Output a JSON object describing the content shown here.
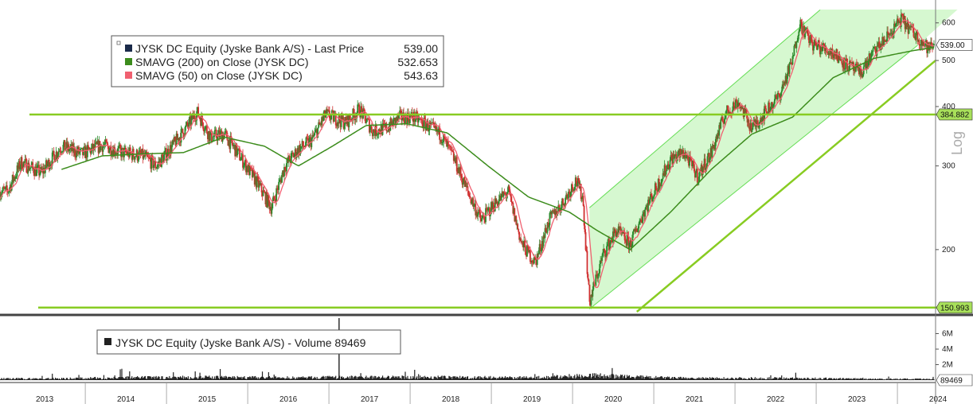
{
  "chart_data": {
    "type": "line",
    "scale": "log",
    "legend": {
      "placement": "top-left",
      "items": [
        {
          "label": "JYSK DC Equity (Jyske Bank A/S) - Last Price",
          "value": "539.00",
          "color": "#1a2a4a"
        },
        {
          "label": "SMAVG (200)  on Close (JYSK DC)",
          "value": "532.653",
          "color": "#3c8c1c"
        },
        {
          "label": "SMAVG (50)  on Close (JYSK DC)",
          "value": "543.63",
          "color": "#f06070"
        }
      ]
    },
    "volume_legend": "JYSK DC Equity (Jyske Bank A/S) - Volume 89469",
    "price_ticks": [
      200,
      300,
      400,
      500,
      600
    ],
    "volume_ticks": [
      "2M",
      "4M",
      "6M"
    ],
    "axis_label": "Log",
    "ylim": [
      148,
      640
    ],
    "years": [
      "2013",
      "2014",
      "2015",
      "2016",
      "2017",
      "2018",
      "2019",
      "2020",
      "2021",
      "2022",
      "2023",
      "2024"
    ],
    "tags": {
      "last_price": "539.00",
      "upper_level": "384.882",
      "lower_level": "150.993",
      "volume_last": "89469"
    },
    "horizontal_levels": [
      384.882,
      150.993
    ],
    "colors": {
      "up": "#2c8a2c",
      "down": "#d03030",
      "sma50": "#f06070",
      "sma200": "#3c8c1c",
      "trend": "#88cc22",
      "channel_fill": "#c8f5c0",
      "channel_edge": "#66dd55"
    },
    "price_keypoints": [
      [
        "2013-01",
        265
      ],
      [
        "2013-03",
        305
      ],
      [
        "2013-06",
        290
      ],
      [
        "2013-09",
        330
      ],
      [
        "2013-12",
        318
      ],
      [
        "2014-03",
        332
      ],
      [
        "2014-06",
        320
      ],
      [
        "2014-09",
        315
      ],
      [
        "2014-11",
        300
      ],
      [
        "2015-01",
        325
      ],
      [
        "2015-04",
        370
      ],
      [
        "2015-05",
        390
      ],
      [
        "2015-07",
        345
      ],
      [
        "2015-09",
        350
      ],
      [
        "2015-11",
        320
      ],
      [
        "2016-02",
        275
      ],
      [
        "2016-04",
        245
      ],
      [
        "2016-06",
        300
      ],
      [
        "2016-08",
        325
      ],
      [
        "2016-10",
        340
      ],
      [
        "2016-12",
        385
      ],
      [
        "2017-03",
        370
      ],
      [
        "2017-05",
        395
      ],
      [
        "2017-07",
        355
      ],
      [
        "2017-09",
        360
      ],
      [
        "2017-11",
        380
      ],
      [
        "2018-01",
        380
      ],
      [
        "2018-03",
        365
      ],
      [
        "2018-05",
        350
      ],
      [
        "2018-07",
        310
      ],
      [
        "2018-09",
        265
      ],
      [
        "2018-11",
        230
      ],
      [
        "2019-01",
        250
      ],
      [
        "2019-03",
        265
      ],
      [
        "2019-05",
        205
      ],
      [
        "2019-07",
        188
      ],
      [
        "2019-09",
        230
      ],
      [
        "2019-11",
        250
      ],
      [
        "2020-01",
        280
      ],
      [
        "2020-02",
        258
      ],
      [
        "2020-03",
        155
      ],
      [
        "2020-05",
        195
      ],
      [
        "2020-07",
        220
      ],
      [
        "2020-09",
        205
      ],
      [
        "2020-11",
        240
      ],
      [
        "2021-01",
        272
      ],
      [
        "2021-03",
        310
      ],
      [
        "2021-05",
        320
      ],
      [
        "2021-07",
        285
      ],
      [
        "2021-09",
        320
      ],
      [
        "2021-11",
        385
      ],
      [
        "2022-01",
        410
      ],
      [
        "2022-03",
        360
      ],
      [
        "2022-05",
        390
      ],
      [
        "2022-07",
        420
      ],
      [
        "2022-09",
        500
      ],
      [
        "2022-10",
        600
      ],
      [
        "2022-12",
        540
      ],
      [
        "2023-03",
        520
      ],
      [
        "2023-05",
        490
      ],
      [
        "2023-07",
        470
      ],
      [
        "2023-09",
        520
      ],
      [
        "2023-11",
        560
      ],
      [
        "2024-01",
        610
      ],
      [
        "2024-03",
        570
      ],
      [
        "2024-05",
        530
      ],
      [
        "2024-06",
        539
      ]
    ],
    "sma200_keypoints": [
      [
        "2013-09",
        295
      ],
      [
        "2014-03",
        315
      ],
      [
        "2014-09",
        318
      ],
      [
        "2015-03",
        320
      ],
      [
        "2015-09",
        345
      ],
      [
        "2016-03",
        330
      ],
      [
        "2016-08",
        300
      ],
      [
        "2017-01",
        330
      ],
      [
        "2017-06",
        365
      ],
      [
        "2017-12",
        368
      ],
      [
        "2018-06",
        352
      ],
      [
        "2018-12",
        300
      ],
      [
        "2019-06",
        258
      ],
      [
        "2019-12",
        240
      ],
      [
        "2020-04",
        220
      ],
      [
        "2020-09",
        200
      ],
      [
        "2021-03",
        240
      ],
      [
        "2021-09",
        295
      ],
      [
        "2022-03",
        350
      ],
      [
        "2022-09",
        380
      ],
      [
        "2023-03",
        460
      ],
      [
        "2023-09",
        505
      ],
      [
        "2024-03",
        525
      ],
      [
        "2024-06",
        532.653
      ]
    ],
    "volume_keypoints": [
      [
        "2013-06",
        0.15
      ],
      [
        "2014-06",
        0.25
      ],
      [
        "2015-06",
        0.3
      ],
      [
        "2016-06",
        0.25
      ],
      [
        "2017-02",
        8.0
      ],
      [
        "2017-06",
        0.3
      ],
      [
        "2018-06",
        0.3
      ],
      [
        "2019-06",
        0.25
      ],
      [
        "2020-03",
        0.5
      ],
      [
        "2021-06",
        0.2
      ],
      [
        "2022-06",
        0.2
      ],
      [
        "2023-06",
        0.15
      ],
      [
        "2024-06",
        0.1
      ]
    ]
  }
}
